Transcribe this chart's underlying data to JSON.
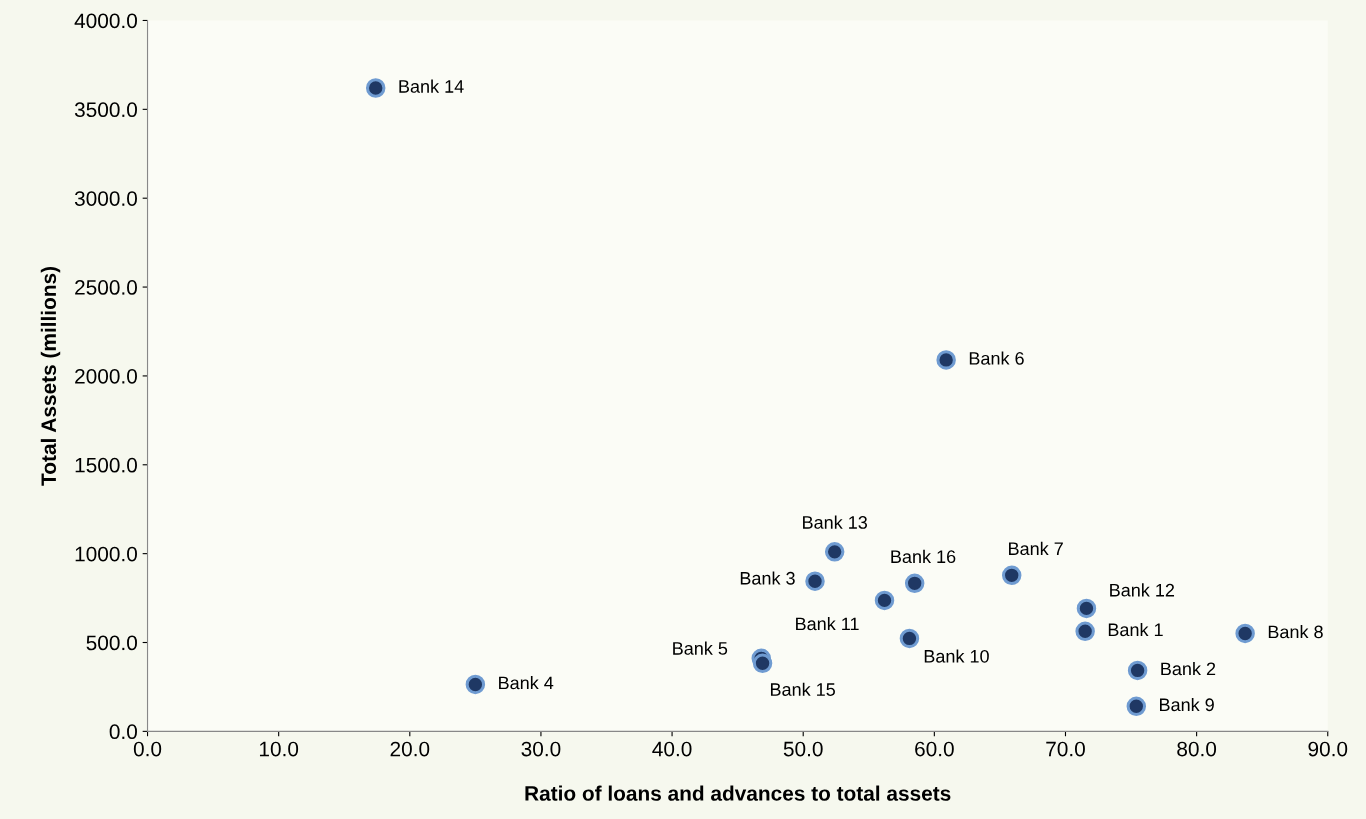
{
  "chart_data": {
    "type": "scatter",
    "xlabel": "Ratio of loans and advances to total assets",
    "ylabel": "Total Assets (millions)",
    "x": [
      71.5,
      75.5,
      50.9,
      25.0,
      46.8,
      60.9,
      65.9,
      83.7,
      75.4,
      58.1,
      56.2,
      71.6,
      52.4,
      17.4,
      46.9,
      58.5
    ],
    "series": [
      {
        "color": "#1f3864",
        "values": [
          563,
          343,
          845,
          264,
          411,
          2090,
          878,
          551,
          141,
          523,
          737,
          692,
          1010,
          3620,
          383,
          833
        ]
      }
    ],
    "value_labels": [
      "Bank 1",
      "Bank 2",
      "Bank 3",
      "Bank 4",
      "Bank 5",
      "Bank 6",
      "Bank 7",
      "Bank 8",
      "Bank 9",
      "Bank 10",
      "Bank 11",
      "Bank 12",
      "Bank 13",
      "Bank 14",
      "Bank 15",
      "Bank 16"
    ],
    "marker": "circle",
    "grid": false,
    "legend": false,
    "xlim": [
      0,
      90
    ],
    "ylim": [
      0,
      4000
    ],
    "xticks": [
      {
        "value": 0,
        "label": "0.0"
      },
      {
        "value": 10,
        "label": "10.0"
      },
      {
        "value": 20,
        "label": "20.0"
      },
      {
        "value": 30,
        "label": "30.0"
      },
      {
        "value": 40,
        "label": "40.0"
      },
      {
        "value": 50,
        "label": "50.0"
      },
      {
        "value": 60,
        "label": "60.0"
      },
      {
        "value": 70,
        "label": "70.0"
      },
      {
        "value": 80,
        "label": "80.0"
      },
      {
        "value": 90,
        "label": "90.0"
      }
    ],
    "yticks": [
      {
        "value": 0,
        "label": "0.0"
      },
      {
        "value": 500,
        "label": "500.0"
      },
      {
        "value": 1000,
        "label": "1000.0"
      },
      {
        "value": 1500,
        "label": "1500.0"
      },
      {
        "value": 2000,
        "label": "2000.0"
      },
      {
        "value": 2500,
        "label": "2500.0"
      },
      {
        "value": 3000,
        "label": "3000.0"
      },
      {
        "value": 3500,
        "label": "3500.0"
      },
      {
        "value": 4000,
        "label": "4000.0"
      }
    ]
  }
}
